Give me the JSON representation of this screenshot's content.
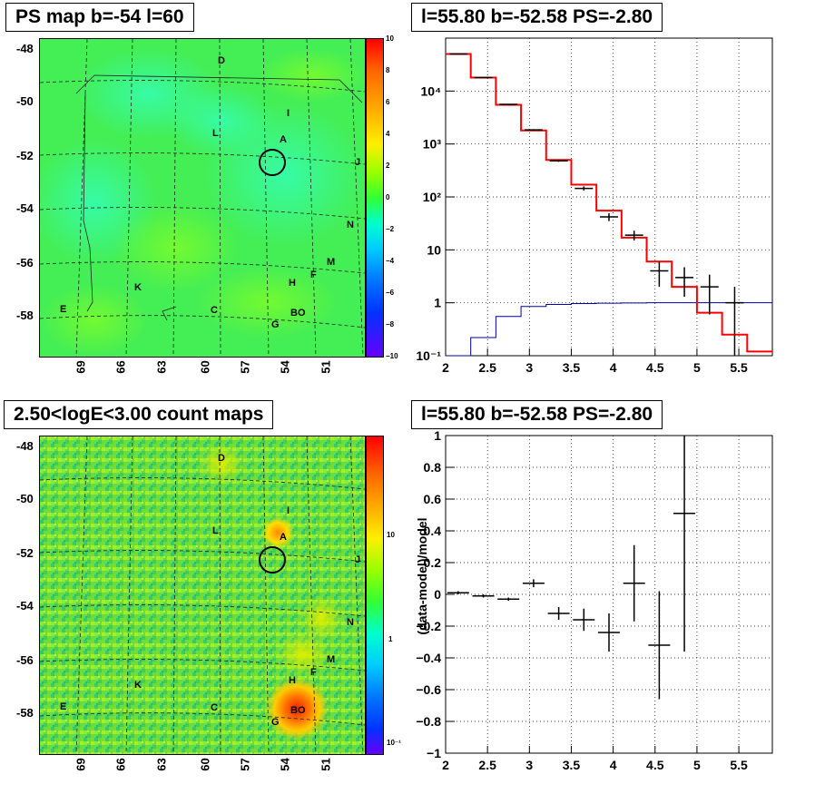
{
  "panels": {
    "top_left_title": "PS map b=-54 l=60",
    "bottom_left_title": "2.50<logE<3.00 count maps",
    "top_right_title": "l=55.80 b=-52.58 PS=-2.80",
    "bottom_right_title": "l=55.80 b=-52.58 PS=-2.80"
  },
  "map_axes": {
    "y_ticks": [
      "-48",
      "-50",
      "-52",
      "-54",
      "-56",
      "-58"
    ],
    "x_ticks": [
      "69",
      "66",
      "63",
      "60",
      "57",
      "54",
      "51"
    ]
  },
  "ps_colorbar_ticks": [
    "10",
    "8",
    "6",
    "4",
    "2",
    "0",
    "−2",
    "−4",
    "−6",
    "−8",
    "−10"
  ],
  "count_colorbar_ticks": [
    "10",
    "1",
    "10⁻¹"
  ],
  "sources": {
    "D": "D",
    "I": "I",
    "L": "L",
    "A": "A",
    "J": "J",
    "N": "N",
    "M": "M",
    "F": "F",
    "H": "H",
    "K": "K",
    "E": "E",
    "C": "C",
    "G": "G",
    "BO": "BO"
  },
  "colors": {
    "model": "#ff0000",
    "data": "#000000",
    "background_model": "#0000aa",
    "map_green": "#33ff33"
  },
  "chart_data": [
    {
      "type": "line",
      "scale": "log-y",
      "xlim": [
        2,
        5.9
      ],
      "ylim": [
        0.1,
        100000
      ],
      "x_ticks": [
        "2",
        "2.5",
        "3",
        "3.5",
        "4",
        "4.5",
        "5",
        "5.5"
      ],
      "y_ticks": [
        "10⁻¹",
        "1",
        "10",
        "10²",
        "10³",
        "10⁴"
      ],
      "grid": true,
      "model_step": {
        "edges": [
          2.0,
          2.3,
          2.6,
          2.9,
          3.2,
          3.5,
          3.8,
          4.1,
          4.4,
          4.7,
          5.0,
          5.3,
          5.6,
          5.9
        ],
        "values": [
          50000,
          18000,
          5500,
          1800,
          500,
          170,
          55,
          17,
          6,
          2,
          0.65,
          0.25,
          0.12
        ]
      },
      "background_step": {
        "edges": [
          2.0,
          2.3,
          2.6,
          2.9,
          3.2,
          3.5,
          3.8,
          4.1,
          4.4,
          4.7,
          5.0,
          5.3,
          5.6,
          5.9
        ],
        "values": [
          0.05,
          0.22,
          0.55,
          0.85,
          0.93,
          0.97,
          0.98,
          0.99,
          1.0,
          1.0,
          1.0,
          1.0,
          1.0
        ]
      },
      "data_points": [
        {
          "x": 2.15,
          "y": 50000,
          "lo": 49000,
          "hi": 51000
        },
        {
          "x": 2.45,
          "y": 18000,
          "lo": 17700,
          "hi": 18300
        },
        {
          "x": 2.75,
          "y": 5600,
          "lo": 5500,
          "hi": 5700
        },
        {
          "x": 3.05,
          "y": 1850,
          "lo": 1800,
          "hi": 1900
        },
        {
          "x": 3.35,
          "y": 480,
          "lo": 460,
          "hi": 500
        },
        {
          "x": 3.65,
          "y": 145,
          "lo": 132,
          "hi": 158
        },
        {
          "x": 3.95,
          "y": 42,
          "lo": 35,
          "hi": 49
        },
        {
          "x": 4.25,
          "y": 19,
          "lo": 15,
          "hi": 23
        },
        {
          "x": 4.55,
          "y": 4,
          "lo": 2,
          "hi": 6
        },
        {
          "x": 4.85,
          "y": 3,
          "lo": 1.3,
          "hi": 4.7
        },
        {
          "x": 5.15,
          "y": 2,
          "lo": 0.6,
          "hi": 3.4
        },
        {
          "x": 5.45,
          "y": 1,
          "lo": 0.1,
          "hi": 2.0
        }
      ]
    },
    {
      "type": "scatter",
      "xlim": [
        2,
        5.9
      ],
      "ylim": [
        -1,
        1
      ],
      "x_ticks": [
        "2",
        "2.5",
        "3",
        "3.5",
        "4",
        "4.5",
        "5",
        "5.5"
      ],
      "y_ticks": [
        "−1",
        "−0.8",
        "−0.6",
        "−0.4",
        "−0.2",
        "0",
        "0.2",
        "0.4",
        "0.6",
        "0.8",
        "1"
      ],
      "ylabel": "(data-model)/model",
      "grid": true,
      "data_points": [
        {
          "x": 2.15,
          "y": 0.01,
          "err": 0.01
        },
        {
          "x": 2.45,
          "y": -0.01,
          "err": 0.01
        },
        {
          "x": 2.75,
          "y": -0.03,
          "err": 0.01
        },
        {
          "x": 3.05,
          "y": 0.07,
          "err": 0.025
        },
        {
          "x": 3.35,
          "y": -0.12,
          "err": 0.04
        },
        {
          "x": 3.65,
          "y": -0.16,
          "err": 0.07
        },
        {
          "x": 3.95,
          "y": -0.24,
          "err": 0.12
        },
        {
          "x": 4.25,
          "y": 0.07,
          "err": 0.24
        },
        {
          "x": 4.55,
          "y": -0.32,
          "err": 0.34
        },
        {
          "x": 4.85,
          "y": 0.51,
          "err": 0.87
        }
      ]
    }
  ]
}
